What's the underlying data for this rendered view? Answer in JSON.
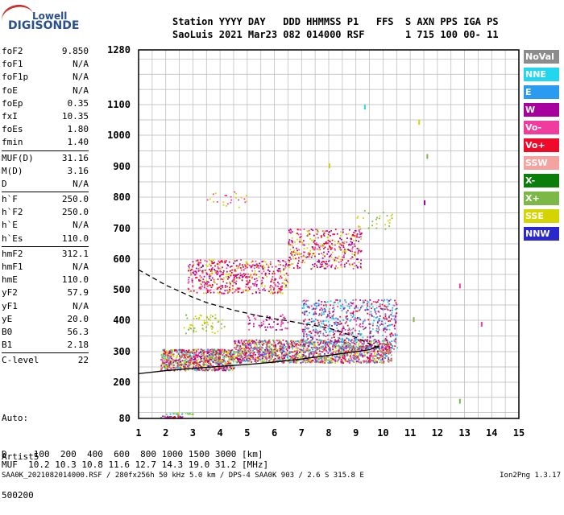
{
  "logo": {
    "line1": "Lowell",
    "line2": "DIGISONDE"
  },
  "header": {
    "line1": "Station YYYY DAY   DDD HHMMSS P1   FFS  S AXN PPS IGA PS",
    "line2": "SaoLuis 2021 Mar23 082 014000 RSF       1 715 100 00- 11"
  },
  "params": [
    {
      "label": "foF2",
      "value": "9.850"
    },
    {
      "label": "foF1",
      "value": "N/A"
    },
    {
      "label": "foF1p",
      "value": "N/A"
    },
    {
      "label": "foE",
      "value": "N/A"
    },
    {
      "label": "foEp",
      "value": "0.35"
    },
    {
      "label": "fxI",
      "value": "10.35"
    },
    {
      "label": "foEs",
      "value": "1.80"
    },
    {
      "label": "fmin",
      "value": "1.40"
    },
    {
      "label": "MUF(D)",
      "value": "31.16"
    },
    {
      "label": "M(D)",
      "value": "3.16"
    },
    {
      "label": "D",
      "value": "N/A"
    },
    {
      "label": "h`F",
      "value": "250.0"
    },
    {
      "label": "h`F2",
      "value": "250.0"
    },
    {
      "label": "h`E",
      "value": "N/A"
    },
    {
      "label": "h`Es",
      "value": "110.0"
    },
    {
      "label": "hmF2",
      "value": "312.1"
    },
    {
      "label": "hmF1",
      "value": "N/A"
    },
    {
      "label": "hmE",
      "value": "110.0"
    },
    {
      "label": "yF2",
      "value": "57.9"
    },
    {
      "label": "yF1",
      "value": "N/A"
    },
    {
      "label": "yE",
      "value": "20.0"
    },
    {
      "label": "B0",
      "value": "56.3"
    },
    {
      "label": "B1",
      "value": "2.18"
    },
    {
      "label": "C-level",
      "value": "22"
    }
  ],
  "separators_after": [
    7,
    10,
    14,
    22
  ],
  "auto": {
    "line1": "Auto:",
    "line2": "Artist5",
    "line3": "500200"
  },
  "legend": [
    {
      "label": "NoVal",
      "color": "#8c8c8c"
    },
    {
      "label": "NNE",
      "color": "#22d6f0"
    },
    {
      "label": "E",
      "color": "#2b9bf2"
    },
    {
      "label": "W",
      "color": "#a8009e"
    },
    {
      "label": "Vo-",
      "color": "#f03c9e"
    },
    {
      "label": "Vo+",
      "color": "#ee0a28"
    },
    {
      "label": "SSW",
      "color": "#f5a3a0"
    },
    {
      "label": "X-",
      "color": "#0a7d0a"
    },
    {
      "label": "X+",
      "color": "#7cb848"
    },
    {
      "label": "SSE",
      "color": "#d4d400"
    },
    {
      "label": "NNW",
      "color": "#2828cc"
    }
  ],
  "footer": {
    "d_line": "D     100  200  400  600  800 1000 1500 3000 [km]",
    "muf_line": "MUF  10.2 10.3 10.8 11.6 12.7 14.3 19.0 31.2 [MHz]",
    "file_line": "SAA0K_2021082014000.RSF / 280fx256h 50 kHz 5.0 km / DPS-4 SAA0K 903 / 2.6 S 315.8 E",
    "version": "Ion2Png 1.3.17"
  },
  "chart_data": {
    "type": "scatter",
    "xlim": [
      1,
      15
    ],
    "ylim": [
      80,
      1280
    ],
    "x_ticks": [
      1,
      2,
      3,
      4,
      5,
      6,
      7,
      8,
      9,
      10,
      11,
      12,
      13,
      14,
      15
    ],
    "y_ticks": [
      80,
      200,
      300,
      400,
      500,
      600,
      700,
      800,
      900,
      1000,
      1100,
      1280
    ],
    "grid": true,
    "clusters": [
      {
        "x": [
          1.8,
          2.6
        ],
        "y": [
          82,
          90
        ],
        "colors": [
          "#2828cc",
          "#ee0a28",
          "#f03c9e"
        ],
        "n": 40
      },
      {
        "x": [
          2.0,
          3.2
        ],
        "y": [
          95,
          100
        ],
        "colors": [
          "#d4d400",
          "#7cb848",
          "#22d6f0"
        ],
        "n": 25
      },
      {
        "x": [
          1.8,
          4.5
        ],
        "y": [
          240,
          310
        ],
        "colors": [
          "#ee0a28",
          "#f03c9e",
          "#d4d400",
          "#a8009e",
          "#22d6f0",
          "#7cb848"
        ],
        "n": 900
      },
      {
        "x": [
          4.5,
          10.3
        ],
        "y": [
          265,
          340
        ],
        "colors": [
          "#ee0a28",
          "#f03c9e",
          "#d4d400",
          "#a8009e",
          "#2b9bf2",
          "#7cb848"
        ],
        "n": 1500
      },
      {
        "x": [
          7.0,
          10.5
        ],
        "y": [
          310,
          470
        ],
        "colors": [
          "#a8009e",
          "#f03c9e",
          "#ee0a28",
          "#2b9bf2",
          "#22d6f0"
        ],
        "n": 700
      },
      {
        "x": [
          2.8,
          6.5
        ],
        "y": [
          490,
          600
        ],
        "colors": [
          "#a8009e",
          "#f03c9e",
          "#d4d400",
          "#ee0a28"
        ],
        "n": 550
      },
      {
        "x": [
          6.5,
          9.2
        ],
        "y": [
          570,
          700
        ],
        "colors": [
          "#a8009e",
          "#f03c9e",
          "#d4d400",
          "#ee0a28"
        ],
        "n": 400
      },
      {
        "x": [
          2.6,
          4.2
        ],
        "y": [
          360,
          420
        ],
        "colors": [
          "#d4d400",
          "#7cb848"
        ],
        "n": 60
      },
      {
        "x": [
          5.0,
          6.5
        ],
        "y": [
          370,
          420
        ],
        "colors": [
          "#a8009e",
          "#f03c9e"
        ],
        "n": 60
      },
      {
        "x": [
          3.5,
          5.0
        ],
        "y": [
          760,
          820
        ],
        "colors": [
          "#d4d400",
          "#f03c9e"
        ],
        "n": 25
      },
      {
        "x": [
          9.0,
          10.5
        ],
        "y": [
          700,
          760
        ],
        "colors": [
          "#d4d400",
          "#7cb848"
        ],
        "n": 30
      }
    ],
    "isolated_points": [
      {
        "x": 9.3,
        "y": 1100,
        "color": "#22d6f0"
      },
      {
        "x": 12.8,
        "y": 520,
        "color": "#f03c9e"
      },
      {
        "x": 12.8,
        "y": 145,
        "color": "#7cb848"
      },
      {
        "x": 13.6,
        "y": 395,
        "color": "#f03c9e"
      },
      {
        "x": 11.5,
        "y": 790,
        "color": "#a8009e"
      },
      {
        "x": 11.6,
        "y": 940,
        "color": "#7cb848"
      },
      {
        "x": 11.3,
        "y": 1050,
        "color": "#d4d400"
      },
      {
        "x": 11.1,
        "y": 410,
        "color": "#7cb848"
      },
      {
        "x": 8.0,
        "y": 910,
        "color": "#d4d400"
      }
    ],
    "profile_curve": {
      "style": "solid",
      "x": [
        1.0,
        2.0,
        3.0,
        4.0,
        5.0,
        6.0,
        7.0,
        8.0,
        9.0,
        9.5,
        9.85
      ],
      "y": [
        228,
        238,
        245,
        252,
        258,
        266,
        276,
        288,
        300,
        306,
        318
      ]
    },
    "density_curve": {
      "style": "dashed",
      "x": [
        1.0,
        1.5,
        2.0,
        2.5,
        3.0,
        3.5,
        4.0,
        4.5,
        5.0,
        5.5,
        6.0,
        6.5,
        7.0,
        7.5,
        8.0,
        8.5,
        9.0,
        9.5,
        9.85
      ],
      "y": [
        565,
        540,
        515,
        495,
        475,
        458,
        445,
        433,
        423,
        413,
        405,
        398,
        390,
        383,
        375,
        362,
        345,
        325,
        312
      ]
    }
  }
}
